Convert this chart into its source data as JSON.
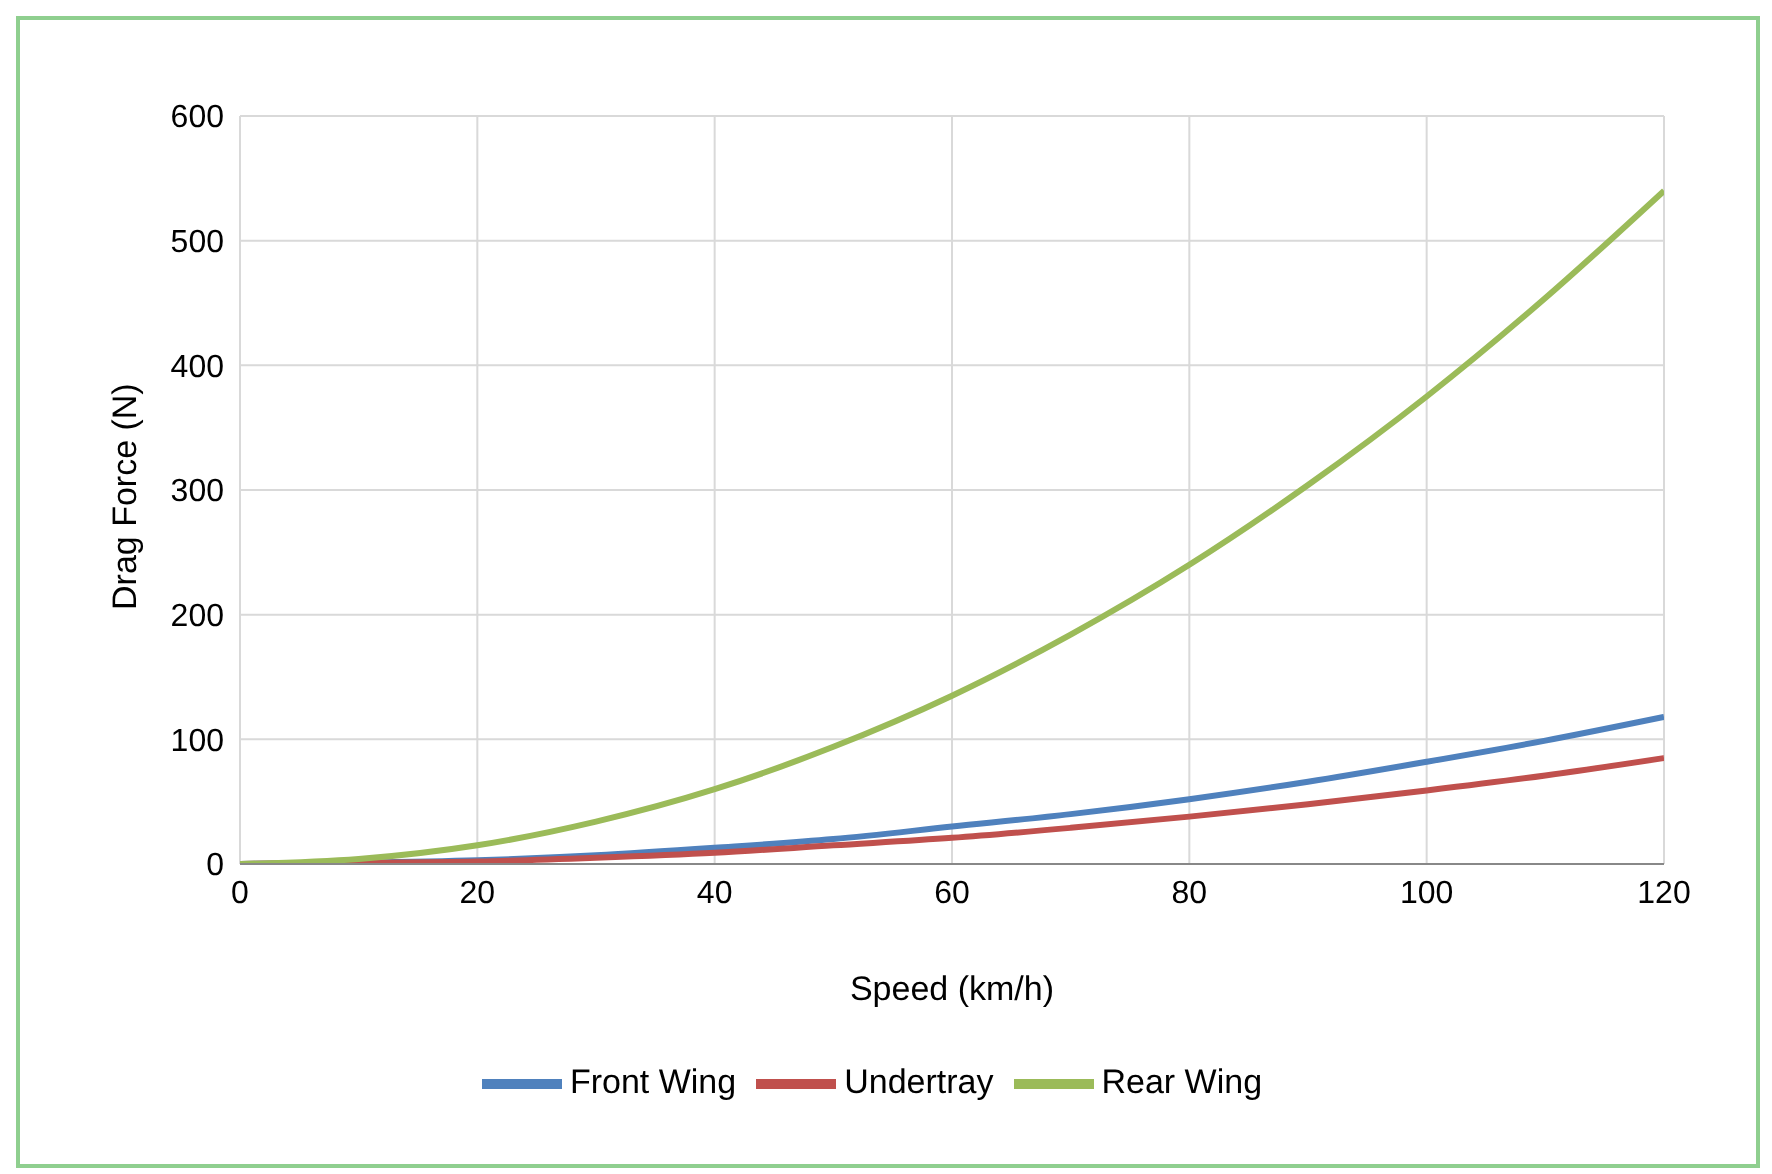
{
  "chart_data": {
    "type": "line",
    "xlabel": "Speed (km/h)",
    "ylabel": "Drag Force (N)",
    "x": [
      0,
      10,
      20,
      30,
      40,
      50,
      60,
      70,
      80,
      90,
      100,
      110,
      120
    ],
    "series": [
      {
        "name": "Front Wing",
        "color": "#4f81bd",
        "values": [
          0,
          1,
          3,
          7,
          13,
          20,
          30,
          40,
          52,
          66,
          82,
          99,
          118
        ]
      },
      {
        "name": "Undertray",
        "color": "#c0504d",
        "values": [
          0,
          1,
          2,
          5,
          9,
          15,
          21,
          29,
          38,
          48,
          59,
          71,
          85
        ]
      },
      {
        "name": "Rear Wing",
        "color": "#9bbb59",
        "values": [
          0,
          4,
          15,
          34,
          60,
          94,
          135,
          184,
          240,
          304,
          375,
          454,
          540
        ]
      }
    ],
    "xlim": [
      0,
      120
    ],
    "xticks": [
      0,
      20,
      40,
      60,
      80,
      100,
      120
    ],
    "ylim": [
      0,
      600
    ],
    "yticks": [
      0,
      100,
      200,
      300,
      400,
      500,
      600
    ],
    "grid": true,
    "legend": "bottom",
    "marker": "none",
    "line_style": "solid"
  }
}
